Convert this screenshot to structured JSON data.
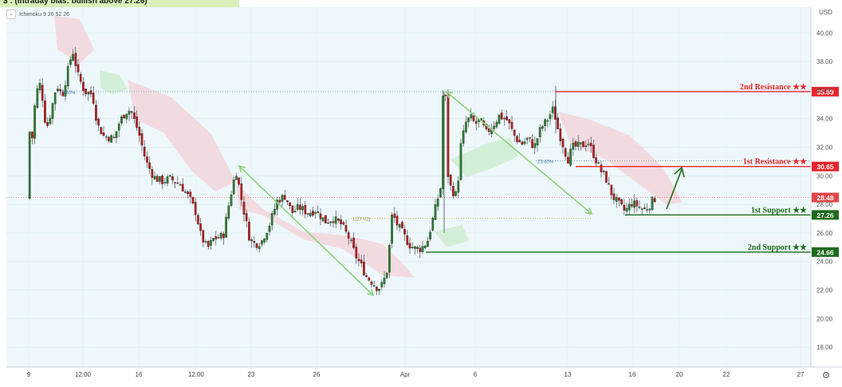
{
  "banner": {
    "text": "$ : (Intraday bias: bullish above 27.26)"
  },
  "indicator": {
    "label": "Ichimoku 9 26 52 26",
    "toggle_icon": "chevron-down-icon"
  },
  "currency": "USD",
  "settings_icon": "gear-icon",
  "colors": {
    "background": "#eef8fc",
    "up": "#2e7d32",
    "down": "#b71c1c",
    "resistance": "#e8252b",
    "support": "#1e6b1e",
    "cloud_red": "#f3cfd4",
    "cloud_green": "#cbeccc",
    "arrow": "#8fd07a",
    "current_price": "#e04848"
  },
  "chart_data": {
    "type": "candlestick",
    "ylim": [
      16.5,
      41.5
    ],
    "y_ticks": [
      "40.00",
      "38.00",
      "36.00",
      "34.00",
      "32.00",
      "30.00",
      "28.00",
      "26.00",
      "24.00",
      "22.00",
      "20.00",
      "18.00"
    ],
    "x_ticks": [
      "9",
      "12:00",
      "16",
      "12:00",
      "23",
      "26",
      "Apr",
      "6",
      "13",
      "16",
      "20",
      "22",
      "27"
    ],
    "levels": [
      {
        "name": "2nd Resistance ★★",
        "value": "35.89",
        "type": "resistance"
      },
      {
        "name": "1st Resistance ★★",
        "value": "30.65",
        "type": "resistance"
      },
      {
        "name": "1st Support ★★",
        "value": "27.26",
        "type": "support"
      },
      {
        "name": "2nd Support ★★",
        "value": "24.66",
        "type": "support"
      }
    ],
    "current_price": "28.48",
    "fib_labels": [
      "78.60%",
      "23.60%",
      "1(27.02)"
    ]
  }
}
